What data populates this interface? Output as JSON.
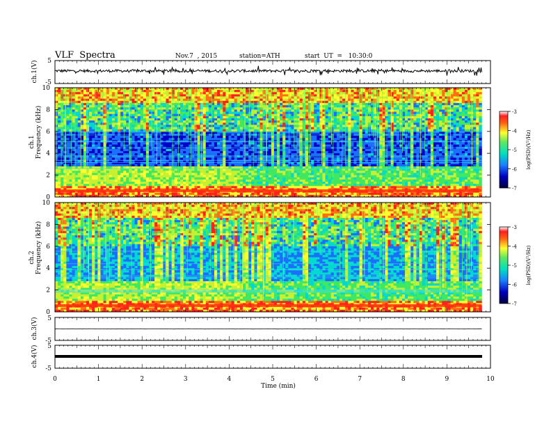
{
  "header": {
    "title": "VLF  Spectra",
    "date": "Nov.7  , 2015",
    "station": "station=ATH",
    "start_ut": "start  UT  =   10:30:0"
  },
  "chart_data": [
    {
      "id": "ch1-waveform",
      "type": "line",
      "ylabel": "ch.1(V)",
      "ylim": [
        -5,
        5
      ],
      "yticks": [
        "5",
        "-5"
      ],
      "x_range_min": [
        0,
        9.8
      ],
      "description_values": {
        "baseline_V": 0.5,
        "amplitude_V": 1.2
      }
    },
    {
      "id": "ch1-spectrogram",
      "type": "heatmap",
      "ylabel_top": "ch.1",
      "ylabel": "Frequency  (kHz)",
      "ylim": [
        0,
        10
      ],
      "yticks": [
        "0",
        "2",
        "4",
        "6",
        "8",
        "10"
      ],
      "colorbar": {
        "label": "log(PSD)(V²/Hz)",
        "range": [
          -7,
          -3
        ],
        "ticks": [
          "-3",
          "-4",
          "-5",
          "-6",
          "-7"
        ]
      }
    },
    {
      "id": "ch2-spectrogram",
      "type": "heatmap",
      "ylabel_top": "ch.2",
      "ylabel": "Frequency  (kHz)",
      "ylim": [
        0,
        10
      ],
      "yticks": [
        "0",
        "2",
        "4",
        "6",
        "8",
        "10"
      ],
      "colorbar": {
        "label": "log(PSD)(V²/Hz)",
        "range": [
          -7,
          -3
        ],
        "ticks": [
          "-3",
          "-4",
          "-5",
          "-6",
          "-7"
        ]
      }
    },
    {
      "id": "ch3-waveform",
      "type": "line",
      "ylabel": "ch.3(V)",
      "ylim": [
        -5,
        5
      ],
      "yticks": [
        "5",
        "-5"
      ],
      "description_values": {
        "baseline_V": 0.0
      }
    },
    {
      "id": "ch4-waveform",
      "type": "line",
      "ylabel": "ch.4(V)",
      "ylim": [
        -5,
        5
      ],
      "yticks": [
        "5",
        "-5"
      ],
      "description_values": {
        "baseline_V": 0.0
      }
    }
  ],
  "xaxis": {
    "label": "Time  (min)",
    "range": [
      0,
      10
    ],
    "ticks": [
      "0",
      "1",
      "2",
      "3",
      "4",
      "5",
      "6",
      "7",
      "8",
      "9",
      "10"
    ],
    "data_end_min": 9.8
  },
  "colors": {
    "low": "#00007a",
    "mid_low": "#1a7fff",
    "mid": "#00e0c0",
    "mid_high": "#5fe85f",
    "high": "#ffff30",
    "top": "#ff2020"
  }
}
